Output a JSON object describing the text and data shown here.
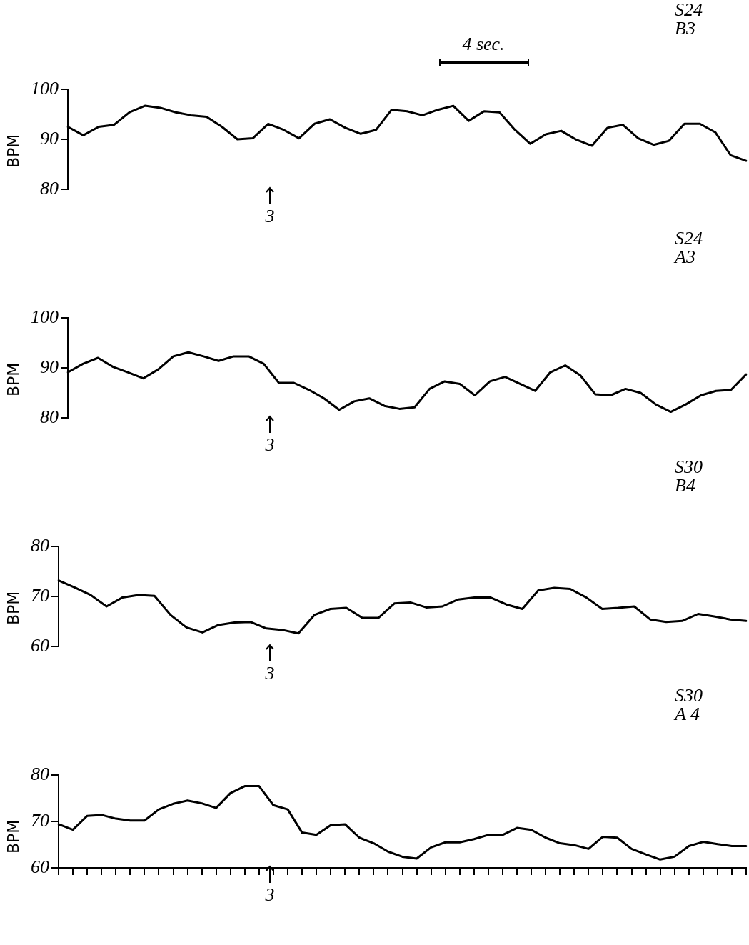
{
  "chart_data": [
    {
      "type": "line",
      "ylabel": "BPM",
      "ylim": [
        80,
        100
      ],
      "yticks": [
        80,
        90,
        100
      ],
      "tick_labels": "y",
      "grid": false,
      "legend": false,
      "marker": "none",
      "line_style": "solid",
      "color": "#000000",
      "annotations": [
        "S24",
        "B3",
        "4 sec.",
        "3"
      ],
      "categories": [
        null,
        null,
        null,
        null,
        null,
        null,
        null,
        null,
        null,
        null,
        null,
        null,
        null,
        null,
        null,
        null,
        null,
        null,
        null,
        null,
        null,
        null,
        null,
        null,
        null,
        null,
        null,
        null,
        null,
        null,
        null,
        null,
        null,
        null,
        null,
        null,
        null,
        null,
        null,
        null,
        null,
        null,
        null,
        null,
        null
      ],
      "values": [
        92.5,
        90.8,
        92.5,
        92.9,
        95.4,
        96.7,
        96.3,
        95.4,
        94.8,
        94.5,
        92.5,
        90,
        90.2,
        93.1,
        91.9,
        90.2,
        93.1,
        94,
        92.3,
        91.1,
        91.9,
        95.9,
        95.6,
        94.8,
        95.9,
        96.7,
        93.7,
        95.6,
        95.4,
        91.9,
        89.1,
        91,
        91.7,
        89.9,
        88.7,
        92.3,
        92.9,
        90.2,
        88.9,
        89.7,
        93.1,
        93.1,
        91.4,
        86.8,
        85.7
      ]
    },
    {
      "type": "line",
      "ylabel": "BPM",
      "ylim": [
        80,
        100
      ],
      "yticks": [
        80,
        90,
        100
      ],
      "tick_labels": "y",
      "grid": false,
      "legend": false,
      "marker": "none",
      "line_style": "solid",
      "color": "#000000",
      "annotations": [
        "S24",
        "A3",
        "3"
      ],
      "categories": [
        null,
        null,
        null,
        null,
        null,
        null,
        null,
        null,
        null,
        null,
        null,
        null,
        null,
        null,
        null,
        null,
        null,
        null,
        null,
        null,
        null,
        null,
        null,
        null,
        null,
        null,
        null,
        null,
        null,
        null,
        null,
        null,
        null,
        null,
        null,
        null,
        null,
        null,
        null,
        null,
        null,
        null,
        null,
        null,
        null,
        null
      ],
      "values": [
        89.1,
        90.8,
        92,
        90.2,
        89.1,
        87.9,
        89.7,
        92.3,
        93.1,
        92.3,
        91.4,
        92.3,
        92.3,
        90.8,
        87,
        87,
        85.6,
        83.9,
        81.6,
        83.3,
        83.9,
        82.4,
        81.8,
        82.1,
        85.8,
        87.3,
        86.8,
        84.5,
        87.3,
        88.2,
        86.8,
        85.4,
        89.1,
        90.5,
        88.5,
        84.7,
        84.5,
        85.8,
        85,
        82.7,
        81.2,
        82.7,
        84.5,
        85.4,
        85.6,
        88.7
      ]
    },
    {
      "type": "line",
      "ylabel": "BPM",
      "ylim": [
        60,
        80
      ],
      "yticks": [
        60,
        70,
        80
      ],
      "tick_labels": "y",
      "grid": false,
      "legend": false,
      "marker": "none",
      "line_style": "solid",
      "color": "#000000",
      "annotations": [
        "S30",
        "B4",
        "3"
      ],
      "categories": [
        null,
        null,
        null,
        null,
        null,
        null,
        null,
        null,
        null,
        null,
        null,
        null,
        null,
        null,
        null,
        null,
        null,
        null,
        null,
        null,
        null,
        null,
        null,
        null,
        null,
        null,
        null,
        null,
        null,
        null,
        null,
        null,
        null,
        null,
        null,
        null,
        null,
        null,
        null,
        null,
        null,
        null,
        null,
        null
      ],
      "values": [
        73.2,
        71.8,
        70.3,
        68,
        69.8,
        70.3,
        70.1,
        66.3,
        63.8,
        62.8,
        64.3,
        64.8,
        64.9,
        63.6,
        63.3,
        62.6,
        66.3,
        67.5,
        67.7,
        65.7,
        65.7,
        68.6,
        68.8,
        67.8,
        68,
        69.4,
        69.8,
        69.8,
        68.4,
        67.5,
        71.2,
        71.7,
        71.5,
        69.8,
        67.5,
        67.7,
        68,
        65.4,
        64.9,
        65.1,
        66.5,
        66,
        65.4,
        65.1
      ]
    },
    {
      "type": "line",
      "ylabel": "BPM",
      "ylim": [
        60,
        80
      ],
      "yticks": [
        60,
        70,
        80
      ],
      "tick_labels": "y",
      "grid": false,
      "legend": false,
      "marker": "none",
      "line_style": "solid",
      "color": "#000000",
      "annotations": [
        "S30",
        "A 4",
        "3"
      ],
      "categories": [
        null,
        null,
        null,
        null,
        null,
        null,
        null,
        null,
        null,
        null,
        null,
        null,
        null,
        null,
        null,
        null,
        null,
        null,
        null,
        null,
        null,
        null,
        null,
        null,
        null,
        null,
        null,
        null,
        null,
        null,
        null,
        null,
        null,
        null,
        null,
        null,
        null,
        null,
        null,
        null,
        null,
        null,
        null,
        null,
        null,
        null,
        null,
        null,
        null
      ],
      "values": [
        69.4,
        68.2,
        71.2,
        71.4,
        70.6,
        70.2,
        70.2,
        72.6,
        73.8,
        74.5,
        73.9,
        72.9,
        76.1,
        77.6,
        77.6,
        73.5,
        72.6,
        67.6,
        67.1,
        69.2,
        69.4,
        66.5,
        65.3,
        63.5,
        62.4,
        62,
        64.4,
        65.5,
        65.5,
        66.2,
        67.1,
        67.1,
        68.6,
        68.2,
        66.5,
        65.3,
        64.9,
        64.1,
        66.7,
        66.5,
        64.1,
        62.9,
        61.8,
        62.4,
        64.7,
        65.6,
        65.1,
        64.7,
        64.7
      ]
    }
  ]
}
